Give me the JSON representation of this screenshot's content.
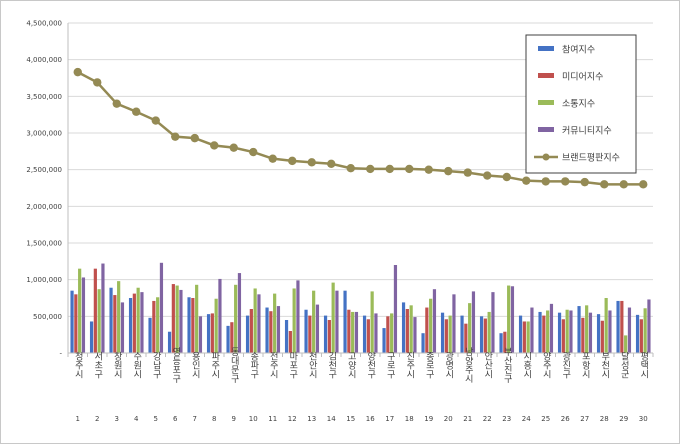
{
  "chart_data": {
    "type": "bar",
    "title": "",
    "xlabel": "",
    "ylabel": "",
    "ylim": [
      0,
      4500000
    ],
    "yticks": [
      "-",
      "500,000",
      "1,000,000",
      "1,500,000",
      "2,000,000",
      "2,500,000",
      "3,000,000",
      "3,500,000",
      "4,000,000",
      "4,500,000"
    ],
    "grid": true,
    "legend_position": "top-right",
    "categories": [
      "청주시",
      "서초구",
      "창원시",
      "수원시",
      "강남구",
      "영등포구",
      "용인시",
      "파주시",
      "동대문구",
      "송파구",
      "전주시",
      "마포구",
      "천안시",
      "김천구",
      "고양시",
      "양천구",
      "구로구",
      "진주시",
      "종로구",
      "광명시",
      "남양주시",
      "안산시",
      "부산진구",
      "시흥시",
      "양주시",
      "광진구",
      "포항시",
      "부천시",
      "달성군",
      "평택시"
    ],
    "ranks": [
      "1",
      "2",
      "3",
      "4",
      "5",
      "6",
      "7",
      "8",
      "9",
      "10",
      "11",
      "12",
      "13",
      "14",
      "15",
      "16",
      "17",
      "18",
      "19",
      "20",
      "21",
      "22",
      "23",
      "24",
      "25",
      "26",
      "27",
      "28",
      "29",
      "30"
    ],
    "series": [
      {
        "name": "참여지수",
        "kind": "bar",
        "color": "#4472c4",
        "values": [
          850000,
          430000,
          890000,
          750000,
          480000,
          290000,
          760000,
          530000,
          370000,
          510000,
          620000,
          450000,
          590000,
          510000,
          850000,
          510000,
          340000,
          690000,
          270000,
          550000,
          510000,
          500000,
          270000,
          510000,
          560000,
          550000,
          640000,
          530000,
          710000,
          520000
        ]
      },
      {
        "name": "미디어지수",
        "kind": "bar",
        "color": "#c0504d",
        "values": [
          800000,
          1150000,
          790000,
          810000,
          710000,
          940000,
          750000,
          540000,
          420000,
          600000,
          570000,
          300000,
          510000,
          450000,
          590000,
          460000,
          500000,
          600000,
          620000,
          460000,
          400000,
          470000,
          290000,
          430000,
          510000,
          460000,
          480000,
          440000,
          710000,
          460000
        ]
      },
      {
        "name": "소통지수",
        "kind": "bar",
        "color": "#9bbb59",
        "values": [
          1150000,
          870000,
          980000,
          890000,
          760000,
          920000,
          930000,
          740000,
          930000,
          880000,
          810000,
          880000,
          850000,
          960000,
          560000,
          840000,
          540000,
          650000,
          740000,
          510000,
          680000,
          560000,
          920000,
          430000,
          580000,
          590000,
          650000,
          750000,
          240000,
          610000
        ]
      },
      {
        "name": "커뮤니티지수",
        "kind": "bar",
        "color": "#8064a2",
        "values": [
          1030000,
          1220000,
          690000,
          830000,
          1230000,
          860000,
          500000,
          1010000,
          1090000,
          800000,
          640000,
          990000,
          660000,
          850000,
          560000,
          540000,
          1200000,
          490000,
          870000,
          800000,
          840000,
          830000,
          910000,
          620000,
          670000,
          580000,
          550000,
          580000,
          620000,
          730000
        ]
      },
      {
        "name": "브랜드평판지수",
        "kind": "line",
        "color": "#948a54",
        "values": [
          3830000,
          3690000,
          3400000,
          3290000,
          3170000,
          2950000,
          2930000,
          2830000,
          2800000,
          2740000,
          2650000,
          2620000,
          2600000,
          2580000,
          2520000,
          2510000,
          2510000,
          2510000,
          2500000,
          2480000,
          2460000,
          2420000,
          2400000,
          2350000,
          2340000,
          2340000,
          2330000,
          2300000,
          2300000,
          2300000
        ]
      }
    ]
  }
}
